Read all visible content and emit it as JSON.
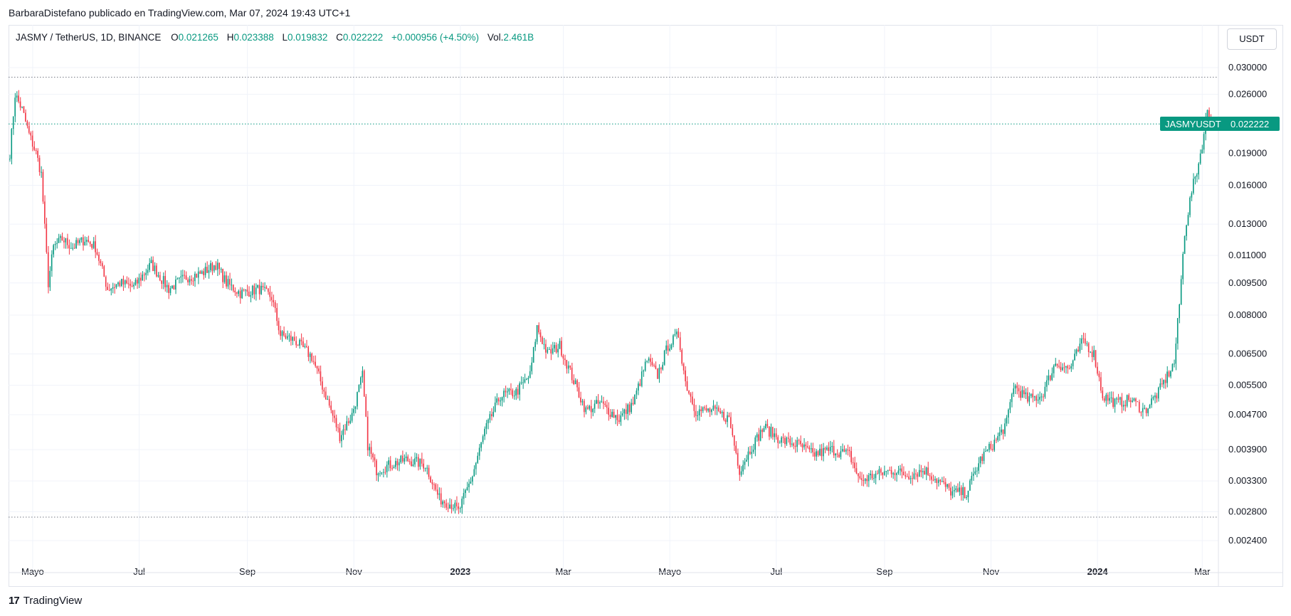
{
  "attribution": "BarbaraDistefano publicado en TradingView.com, Mar 07, 2024 19:43 UTC+1",
  "legend": {
    "symbol": "JASMY / TetherUS, 1D, BINANCE",
    "open_label": "O",
    "open": "0.021265",
    "high_label": "H",
    "high": "0.023388",
    "low_label": "L",
    "low": "0.019832",
    "close_label": "C",
    "close": "0.022222",
    "change": "+0.000956 (+4.50%)",
    "volume_label": "Vol.",
    "volume": "2.461B"
  },
  "currency_button": "USDT",
  "last_price_label": {
    "symbol": "JASMYUSDT",
    "price": "0.022222"
  },
  "footer": {
    "logo_mark": "17",
    "logo_text": "TradingView"
  },
  "colors": {
    "up": "#089981",
    "down": "#f23645",
    "grid": "#f0f3fa",
    "axis_text": "#131722",
    "dotted_line": "#787b86",
    "price_tag": "#089981"
  },
  "chart_data": {
    "type": "candlestick",
    "scale": "log",
    "x_start": "2022-04-18",
    "x_end": "2024-03-07",
    "y_ticks": [
      "0.030000",
      "0.026000",
      "0.022222",
      "0.019000",
      "0.016000",
      "0.013000",
      "0.011000",
      "0.009500",
      "0.008000",
      "0.006500",
      "0.005500",
      "0.004700",
      "0.003900",
      "0.003300",
      "0.002800",
      "0.002400"
    ],
    "x_ticks": [
      {
        "date": "2022-05-01",
        "label": "Mayo",
        "bold": false
      },
      {
        "date": "2022-07-01",
        "label": "Jul",
        "bold": false
      },
      {
        "date": "2022-09-01",
        "label": "Sep",
        "bold": false
      },
      {
        "date": "2022-11-01",
        "label": "Nov",
        "bold": false
      },
      {
        "date": "2023-01-01",
        "label": "2023",
        "bold": true
      },
      {
        "date": "2023-03-01",
        "label": "Mar",
        "bold": false
      },
      {
        "date": "2023-05-01",
        "label": "Mayo",
        "bold": false
      },
      {
        "date": "2023-07-01",
        "label": "Jul",
        "bold": false
      },
      {
        "date": "2023-09-01",
        "label": "Sep",
        "bold": false
      },
      {
        "date": "2023-11-01",
        "label": "Nov",
        "bold": false
      },
      {
        "date": "2024-01-01",
        "label": "2024",
        "bold": true
      },
      {
        "date": "2024-03-01",
        "label": "Mar",
        "bold": false
      }
    ],
    "horizontal_levels": [
      0.0285,
      0.0222,
      0.00272
    ],
    "price_path": [
      [
        "2022-04-18",
        0.019
      ],
      [
        "2022-04-21",
        0.026
      ],
      [
        "2022-04-25",
        0.024
      ],
      [
        "2022-04-29",
        0.021
      ],
      [
        "2022-05-03",
        0.019
      ],
      [
        "2022-05-06",
        0.017
      ],
      [
        "2022-05-10",
        0.0095
      ],
      [
        "2022-05-13",
        0.0115
      ],
      [
        "2022-05-18",
        0.012
      ],
      [
        "2022-05-24",
        0.0115
      ],
      [
        "2022-05-31",
        0.012
      ],
      [
        "2022-06-06",
        0.0115
      ],
      [
        "2022-06-13",
        0.0092
      ],
      [
        "2022-06-20",
        0.0095
      ],
      [
        "2022-06-28",
        0.0093
      ],
      [
        "2022-07-08",
        0.0105
      ],
      [
        "2022-07-18",
        0.0092
      ],
      [
        "2022-07-28",
        0.0098
      ],
      [
        "2022-08-06",
        0.01
      ],
      [
        "2022-08-14",
        0.0105
      ],
      [
        "2022-08-20",
        0.0095
      ],
      [
        "2022-08-28",
        0.009
      ],
      [
        "2022-09-08",
        0.0092
      ],
      [
        "2022-09-15",
        0.0088
      ],
      [
        "2022-09-20",
        0.0072
      ],
      [
        "2022-09-28",
        0.007
      ],
      [
        "2022-10-08",
        0.0064
      ],
      [
        "2022-10-16",
        0.0052
      ],
      [
        "2022-10-24",
        0.0042
      ],
      [
        "2022-10-31",
        0.0047
      ],
      [
        "2022-11-06",
        0.0058
      ],
      [
        "2022-11-09",
        0.004
      ],
      [
        "2022-11-14",
        0.0035
      ],
      [
        "2022-11-22",
        0.0036
      ],
      [
        "2022-12-01",
        0.0037
      ],
      [
        "2022-12-12",
        0.0036
      ],
      [
        "2022-12-20",
        0.003
      ],
      [
        "2022-12-28",
        0.0029
      ],
      [
        "2022-12-31",
        0.0028
      ],
      [
        "2023-01-08",
        0.0034
      ],
      [
        "2023-01-15",
        0.0043
      ],
      [
        "2023-01-24",
        0.0052
      ],
      [
        "2023-02-02",
        0.0053
      ],
      [
        "2023-02-10",
        0.0058
      ],
      [
        "2023-02-14",
        0.0075
      ],
      [
        "2023-02-20",
        0.0065
      ],
      [
        "2023-02-27",
        0.0068
      ],
      [
        "2023-03-08",
        0.0055
      ],
      [
        "2023-03-14",
        0.0048
      ],
      [
        "2023-03-22",
        0.005
      ],
      [
        "2023-04-02",
        0.0046
      ],
      [
        "2023-04-10",
        0.005
      ],
      [
        "2023-04-18",
        0.0063
      ],
      [
        "2023-04-24",
        0.0058
      ],
      [
        "2023-04-30",
        0.0068
      ],
      [
        "2023-05-06",
        0.0072
      ],
      [
        "2023-05-10",
        0.0056
      ],
      [
        "2023-05-16",
        0.0048
      ],
      [
        "2023-05-26",
        0.0048
      ],
      [
        "2023-06-04",
        0.0046
      ],
      [
        "2023-06-10",
        0.0035
      ],
      [
        "2023-06-16",
        0.0039
      ],
      [
        "2023-06-24",
        0.0044
      ],
      [
        "2023-07-04",
        0.0041
      ],
      [
        "2023-07-14",
        0.004
      ],
      [
        "2023-07-22",
        0.0038
      ],
      [
        "2023-08-02",
        0.0039
      ],
      [
        "2023-08-12",
        0.0038
      ],
      [
        "2023-08-18",
        0.0033
      ],
      [
        "2023-08-26",
        0.0034
      ],
      [
        "2023-09-06",
        0.0035
      ],
      [
        "2023-09-14",
        0.0034
      ],
      [
        "2023-09-24",
        0.0035
      ],
      [
        "2023-10-02",
        0.0033
      ],
      [
        "2023-10-10",
        0.0031
      ],
      [
        "2023-10-18",
        0.0031
      ],
      [
        "2023-10-26",
        0.0037
      ],
      [
        "2023-11-04",
        0.0041
      ],
      [
        "2023-11-10",
        0.0045
      ],
      [
        "2023-11-14",
        0.0055
      ],
      [
        "2023-11-22",
        0.0051
      ],
      [
        "2023-11-30",
        0.0052
      ],
      [
        "2023-12-08",
        0.0062
      ],
      [
        "2023-12-16",
        0.006
      ],
      [
        "2023-12-24",
        0.007
      ],
      [
        "2023-12-30",
        0.0065
      ],
      [
        "2024-01-04",
        0.0052
      ],
      [
        "2024-01-12",
        0.005
      ],
      [
        "2024-01-20",
        0.0051
      ],
      [
        "2024-01-28",
        0.0048
      ],
      [
        "2024-02-05",
        0.0053
      ],
      [
        "2024-02-14",
        0.0062
      ],
      [
        "2024-02-17",
        0.0085
      ],
      [
        "2024-02-20",
        0.0125
      ],
      [
        "2024-02-24",
        0.0155
      ],
      [
        "2024-02-28",
        0.018
      ],
      [
        "2024-03-02",
        0.021
      ],
      [
        "2024-03-04",
        0.024
      ],
      [
        "2024-03-07",
        0.0222
      ]
    ]
  }
}
